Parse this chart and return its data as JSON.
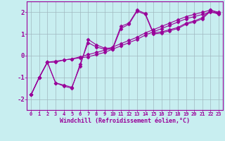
{
  "xlabel": "Windchill (Refroidissement éolien,°C)",
  "bg_color": "#c8eef0",
  "line_color": "#990099",
  "marker": "D",
  "markersize": 2.5,
  "linewidth": 0.8,
  "xlim": [
    -0.5,
    23.5
  ],
  "ylim": [
    -2.5,
    2.5
  ],
  "yticks": [
    -2,
    -1,
    0,
    1,
    2
  ],
  "xticks": [
    0,
    1,
    2,
    3,
    4,
    5,
    6,
    7,
    8,
    9,
    10,
    11,
    12,
    13,
    14,
    15,
    16,
    17,
    18,
    19,
    20,
    21,
    22,
    23
  ],
  "grid_color": "#a0b8c0",
  "lines": [
    [
      [
        0,
        -1.8
      ],
      [
        1,
        -1.0
      ],
      [
        2,
        -0.3
      ],
      [
        3,
        -0.3
      ],
      [
        4,
        -0.2
      ],
      [
        5,
        -0.15
      ],
      [
        6,
        -0.05
      ],
      [
        7,
        0.05
      ],
      [
        8,
        0.15
      ],
      [
        9,
        0.25
      ],
      [
        10,
        0.4
      ],
      [
        11,
        0.55
      ],
      [
        12,
        0.7
      ],
      [
        13,
        0.85
      ],
      [
        14,
        1.05
      ],
      [
        15,
        1.2
      ],
      [
        16,
        1.35
      ],
      [
        17,
        1.5
      ],
      [
        18,
        1.65
      ],
      [
        19,
        1.8
      ],
      [
        20,
        1.9
      ],
      [
        21,
        2.0
      ],
      [
        22,
        2.1
      ],
      [
        23,
        2.0
      ]
    ],
    [
      [
        0,
        -1.8
      ],
      [
        1,
        -1.0
      ],
      [
        2,
        -0.3
      ],
      [
        3,
        -1.25
      ],
      [
        4,
        -1.35
      ],
      [
        5,
        -1.45
      ],
      [
        6,
        -0.5
      ],
      [
        7,
        0.75
      ],
      [
        8,
        0.5
      ],
      [
        9,
        0.35
      ],
      [
        10,
        0.35
      ],
      [
        11,
        1.35
      ],
      [
        12,
        1.5
      ],
      [
        13,
        2.1
      ],
      [
        14,
        1.95
      ],
      [
        15,
        1.05
      ],
      [
        16,
        1.1
      ],
      [
        17,
        1.2
      ],
      [
        18,
        1.3
      ],
      [
        19,
        1.5
      ],
      [
        20,
        1.6
      ],
      [
        21,
        1.75
      ],
      [
        22,
        2.1
      ],
      [
        23,
        1.95
      ]
    ],
    [
      [
        0,
        -1.8
      ],
      [
        1,
        -1.0
      ],
      [
        2,
        -0.3
      ],
      [
        3,
        -1.25
      ],
      [
        4,
        -1.4
      ],
      [
        5,
        -1.5
      ],
      [
        6,
        -0.4
      ],
      [
        7,
        0.6
      ],
      [
        8,
        0.4
      ],
      [
        9,
        0.3
      ],
      [
        10,
        0.3
      ],
      [
        11,
        1.25
      ],
      [
        12,
        1.45
      ],
      [
        13,
        2.05
      ],
      [
        14,
        1.9
      ],
      [
        15,
        1.0
      ],
      [
        16,
        1.05
      ],
      [
        17,
        1.15
      ],
      [
        18,
        1.25
      ],
      [
        19,
        1.45
      ],
      [
        20,
        1.55
      ],
      [
        21,
        1.7
      ],
      [
        22,
        2.05
      ],
      [
        23,
        1.9
      ]
    ],
    [
      [
        0,
        -1.8
      ],
      [
        1,
        -1.0
      ],
      [
        2,
        -0.3
      ],
      [
        3,
        -0.25
      ],
      [
        4,
        -0.2
      ],
      [
        5,
        -0.15
      ],
      [
        6,
        -0.1
      ],
      [
        7,
        -0.05
      ],
      [
        8,
        0.05
      ],
      [
        9,
        0.15
      ],
      [
        10,
        0.3
      ],
      [
        11,
        0.45
      ],
      [
        12,
        0.6
      ],
      [
        13,
        0.75
      ],
      [
        14,
        0.95
      ],
      [
        15,
        1.1
      ],
      [
        16,
        1.25
      ],
      [
        17,
        1.4
      ],
      [
        18,
        1.55
      ],
      [
        19,
        1.7
      ],
      [
        20,
        1.8
      ],
      [
        21,
        1.9
      ],
      [
        22,
        2.0
      ],
      [
        23,
        1.95
      ]
    ]
  ]
}
